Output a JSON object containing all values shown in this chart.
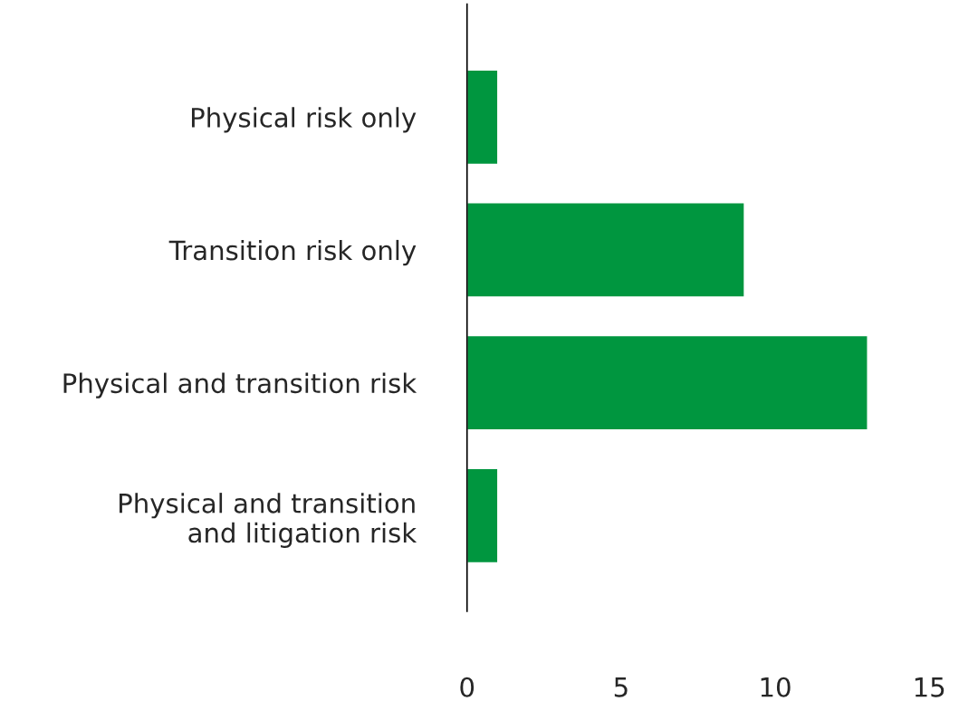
{
  "chart_data": {
    "type": "bar",
    "orientation": "horizontal",
    "categories": [
      "Physical risk only",
      "Transition risk only",
      "Physical and transition risk",
      "Physical and transition\nand litigation risk"
    ],
    "values": [
      1,
      9,
      13,
      1
    ],
    "color": "#00963f",
    "xlim": [
      0,
      15
    ],
    "xticks": [
      0,
      5,
      10,
      15
    ],
    "grid": false,
    "legend": false
  }
}
